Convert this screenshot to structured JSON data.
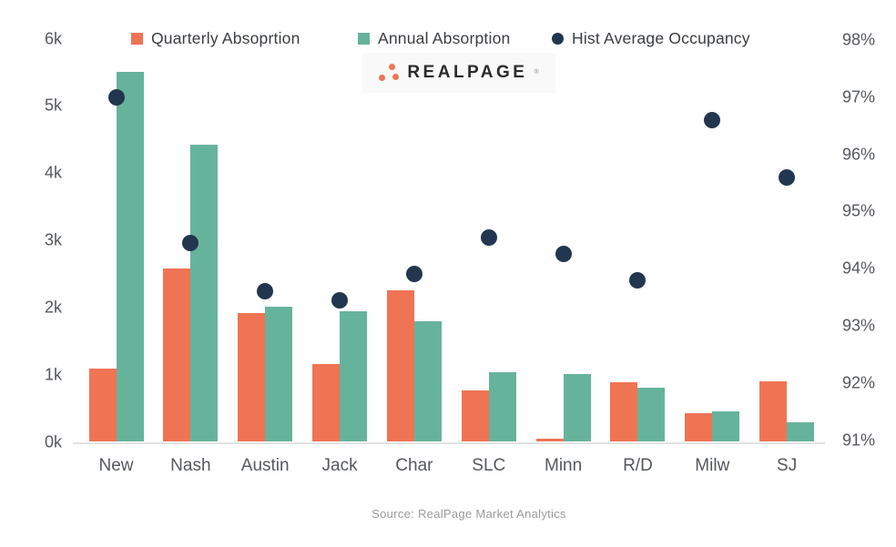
{
  "chart_data": {
    "type": "combo",
    "categories": [
      "New",
      "Nash",
      "Austin",
      "Jack",
      "Char",
      "SLC",
      "Minn",
      "R/D",
      "Milw",
      "SJ"
    ],
    "series": [
      {
        "name": "Quarterly Absoprtion",
        "type": "bar",
        "axis": "left",
        "values": [
          1090,
          2580,
          1920,
          1160,
          2260,
          770,
          50,
          890,
          430,
          900
        ]
      },
      {
        "name": "Annual Absorption",
        "type": "bar",
        "axis": "left",
        "values": [
          5500,
          4420,
          2010,
          1950,
          1800,
          1030,
          1010,
          800,
          450,
          290
        ]
      },
      {
        "name": "Hist Average Occupancy",
        "type": "scatter",
        "axis": "right",
        "values": [
          97.0,
          94.45,
          93.6,
          93.45,
          93.9,
          94.55,
          94.25,
          93.8,
          96.6,
          95.6
        ]
      }
    ],
    "left_axis": {
      "min": 0,
      "max": 6000,
      "ticks": [
        "0k",
        "1k",
        "2k",
        "3k",
        "4k",
        "5k",
        "6k"
      ]
    },
    "right_axis": {
      "min": 91,
      "max": 98,
      "ticks": [
        "91%",
        "92%",
        "93%",
        "94%",
        "95%",
        "96%",
        "97%",
        "98%"
      ]
    },
    "grid": false,
    "legend_position": "top"
  },
  "colors": {
    "quarterly": "#ee7454",
    "annual": "#66b39b",
    "occupancy": "#22364f",
    "axis_text": "#55585e",
    "legend_text": "#3a3d42",
    "baseline": "#e2e2e2",
    "logo_text": "#2b2b2b",
    "logo_dots": "#ee7454",
    "source_text": "#9b9b9b"
  },
  "logo": {
    "text": "REALPAGE",
    "mark": "®"
  },
  "source": {
    "text": "Source: RealPage Market Analytics"
  }
}
